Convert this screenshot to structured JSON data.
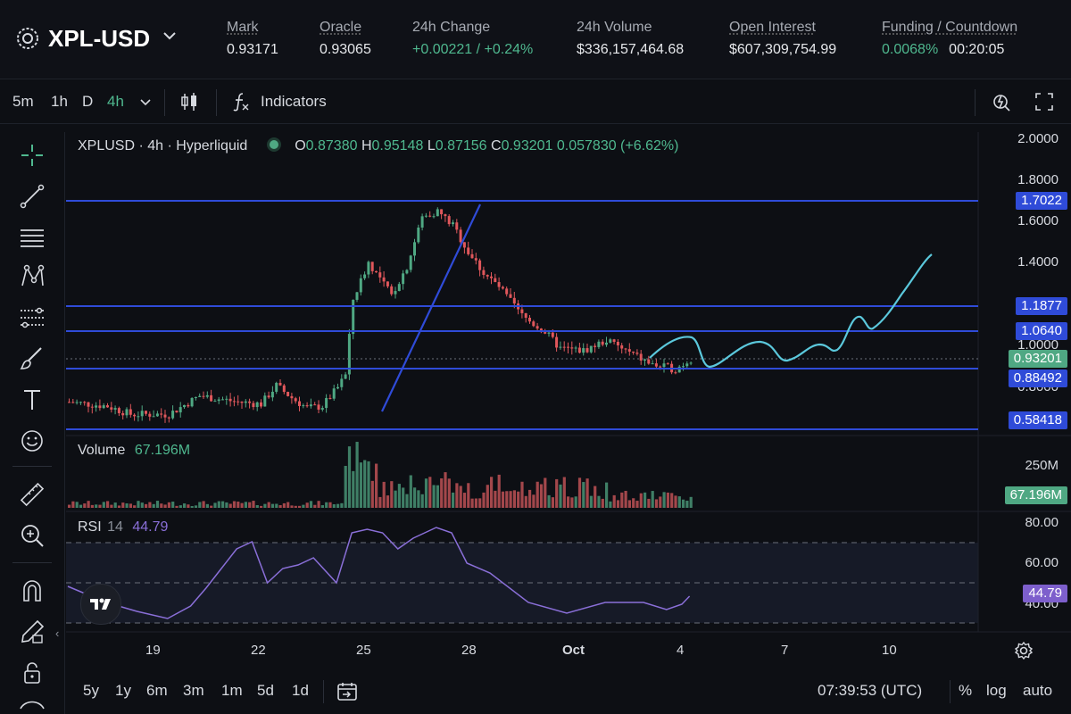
{
  "header": {
    "pair": "XPL-USD",
    "stats": [
      {
        "label": "Mark",
        "value": "0.93171"
      },
      {
        "label": "Oracle",
        "value": "0.93065"
      },
      {
        "label": "24h Change",
        "value": "+0.00221 / +0.24%"
      },
      {
        "label": "24h Volume",
        "value": "$336,157,464.68"
      },
      {
        "label": "Open Interest",
        "value": "$607,309,754.99"
      },
      {
        "label": "Funding / Countdown",
        "value": "0.0068%",
        "value2": "00:20:05"
      }
    ]
  },
  "toolbar": {
    "timeframes": [
      "5m",
      "1h",
      "D",
      "4h"
    ],
    "active_timeframe": "4h",
    "indicators_label": "Indicators"
  },
  "legend": {
    "title": "XPLUSD · 4h · Hyperliquid",
    "o_key": "O",
    "o": "0.87380",
    "h_key": "H",
    "h": "0.95148",
    "l_key": "L",
    "l": "0.87156",
    "c_key": "C",
    "c": "0.93201",
    "change": "0.057830 (+6.62%)"
  },
  "volume_legend": {
    "label": "Volume",
    "value": "67.196M"
  },
  "rsi_legend": {
    "label": "RSI",
    "period": "14",
    "value": "44.79"
  },
  "price_axis": [
    "2.0000",
    "1.8000",
    "1.6000",
    "1.4000",
    "1.0000",
    "0.8000"
  ],
  "price_tags": [
    {
      "value": "1.7022",
      "color": "#2f4bd8"
    },
    {
      "value": "1.1877",
      "color": "#2f4bd8"
    },
    {
      "value": "1.0640",
      "color": "#2f4bd8"
    },
    {
      "value": "0.93201",
      "color": "#4fa883"
    },
    {
      "value": "0.88492",
      "color": "#2f4bd8"
    },
    {
      "value": "0.58418",
      "color": "#2f4bd8"
    }
  ],
  "volume_axis": "250M",
  "volume_tag": "67.196M",
  "rsi_axis": [
    "80.00",
    "60.00",
    "40.00"
  ],
  "rsi_tag": "44.79",
  "dates": [
    "19",
    "22",
    "25",
    "28",
    "Oct",
    "4",
    "7",
    "10"
  ],
  "bottom": {
    "ranges": [
      "5y",
      "1y",
      "6m",
      "3m",
      "1m",
      "5d",
      "1d"
    ],
    "clock": "07:39:53 (UTC)",
    "percent": "%",
    "log": "log",
    "auto": "auto"
  },
  "colors": {
    "up": "#4fa883",
    "down": "#e0575b",
    "line": "#2f4bd8",
    "projection": "#5bc8dc",
    "rsi": "#8a6fd8"
  },
  "chart_data": {
    "type": "candlestick",
    "symbol": "XPLUSD",
    "interval": "4h",
    "y_range": [
      0.55,
      2.0
    ],
    "horizontal_levels": [
      1.7022,
      1.1877,
      1.064,
      0.88492,
      0.58418
    ],
    "last_price": 0.93201,
    "last_volume": "67.196M",
    "rsi_last": 44.79,
    "rsi_bands": [
      30,
      50,
      70
    ],
    "x_labels": [
      "19",
      "22",
      "25",
      "28",
      "Oct",
      "4",
      "7",
      "10"
    ]
  }
}
